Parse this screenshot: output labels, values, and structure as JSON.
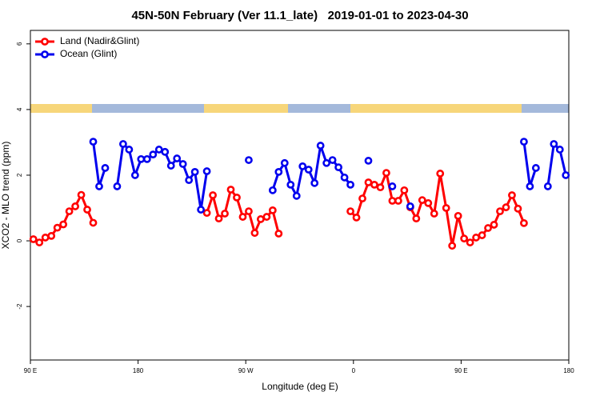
{
  "chart_data": {
    "type": "line",
    "title": "45N-50N February (Ver 11.1_late)   2019-01-01 to 2023-04-30",
    "xlabel": "Longitude (deg E)",
    "ylabel": "XCO2 - MLO trend (ppm)",
    "legend": "top-left",
    "xlim": [
      90,
      540
    ],
    "ylim": [
      -3.63,
      6.41
    ],
    "xticks": [
      {
        "value": 90,
        "label": "90 E"
      },
      {
        "value": 180,
        "label": "180"
      },
      {
        "value": 270,
        "label": "90 W"
      },
      {
        "value": 360,
        "label": "0"
      },
      {
        "value": 450,
        "label": "90 E"
      },
      {
        "value": 540,
        "label": "180"
      }
    ],
    "yticks": [
      -2,
      0,
      2,
      4,
      6
    ],
    "x": [
      92.5,
      97.5,
      102.5,
      107.5,
      112.5,
      117.5,
      122.5,
      127.5,
      132.5,
      137.5,
      142.5,
      147.5,
      152.5,
      157.5,
      162.5,
      167.5,
      172.5,
      177.5,
      182.5,
      187.5,
      192.5,
      197.5,
      202.5,
      207.5,
      212.5,
      217.5,
      222.5,
      227.5,
      232.5,
      237.5,
      242.5,
      247.5,
      252.5,
      257.5,
      262.5,
      267.5,
      272.5,
      277.5,
      282.5,
      287.5,
      292.5,
      297.5,
      302.5,
      307.5,
      312.5,
      317.5,
      322.5,
      327.5,
      332.5,
      337.5,
      342.5,
      347.5,
      352.5,
      357.5,
      362.5,
      367.5,
      372.5,
      377.5,
      382.5,
      387.5,
      392.5,
      397.5,
      402.5,
      407.5,
      412.5,
      417.5,
      422.5,
      427.5,
      432.5,
      437.5,
      442.5,
      447.5,
      452.5,
      457.5,
      462.5,
      467.5,
      472.5,
      477.5,
      482.5,
      487.5,
      492.5,
      497.5,
      502.5,
      507.5,
      512.5,
      517.5,
      522.5,
      527.5,
      532.5,
      537.5
    ],
    "series": [
      {
        "name": "Land (Nadir&Glint)",
        "color": "#ff0000",
        "values": [
          0.05,
          -0.05,
          0.1,
          0.15,
          0.4,
          0.5,
          0.9,
          1.05,
          1.4,
          0.95,
          0.55,
          null,
          null,
          null,
          null,
          null,
          null,
          null,
          null,
          null,
          null,
          null,
          null,
          null,
          null,
          null,
          null,
          null,
          null,
          0.85,
          1.39,
          0.68,
          0.83,
          1.56,
          1.32,
          0.73,
          0.9,
          0.24,
          0.66,
          0.73,
          0.93,
          0.22,
          null,
          null,
          null,
          null,
          null,
          null,
          null,
          null,
          null,
          null,
          null,
          0.9,
          0.71,
          1.29,
          1.78,
          1.71,
          1.63,
          2.07,
          1.22,
          1.22,
          1.54,
          1.02,
          0.68,
          1.24,
          1.15,
          0.83,
          2.05,
          1.0,
          -0.15,
          0.76,
          0.07,
          -0.05,
          0.1,
          0.17,
          0.39,
          0.49,
          0.9,
          1.02,
          1.39,
          0.98,
          0.54,
          null,
          null,
          null,
          null,
          null,
          null,
          null
        ]
      },
      {
        "name": "Ocean (Glint)",
        "color": "#0000ee",
        "values": [
          null,
          null,
          null,
          null,
          null,
          null,
          null,
          null,
          null,
          null,
          3.02,
          1.66,
          2.22,
          null,
          1.66,
          2.95,
          2.78,
          2.0,
          2.49,
          2.49,
          2.63,
          2.78,
          2.71,
          2.29,
          2.51,
          2.34,
          1.85,
          2.1,
          0.95,
          2.12,
          null,
          null,
          null,
          null,
          null,
          null,
          2.46,
          null,
          null,
          null,
          1.54,
          2.1,
          2.37,
          1.71,
          1.37,
          2.27,
          2.17,
          1.76,
          2.9,
          2.37,
          2.46,
          2.24,
          1.93,
          1.71,
          null,
          null,
          2.44,
          null,
          null,
          null,
          1.66,
          null,
          null,
          1.05,
          null,
          null,
          null,
          null,
          null,
          null,
          null,
          null,
          null,
          null,
          null,
          null,
          null,
          null,
          null,
          null,
          null,
          null,
          3.02,
          1.66,
          2.22,
          null,
          1.66,
          2.95,
          2.78,
          2.0
        ]
      }
    ]
  }
}
